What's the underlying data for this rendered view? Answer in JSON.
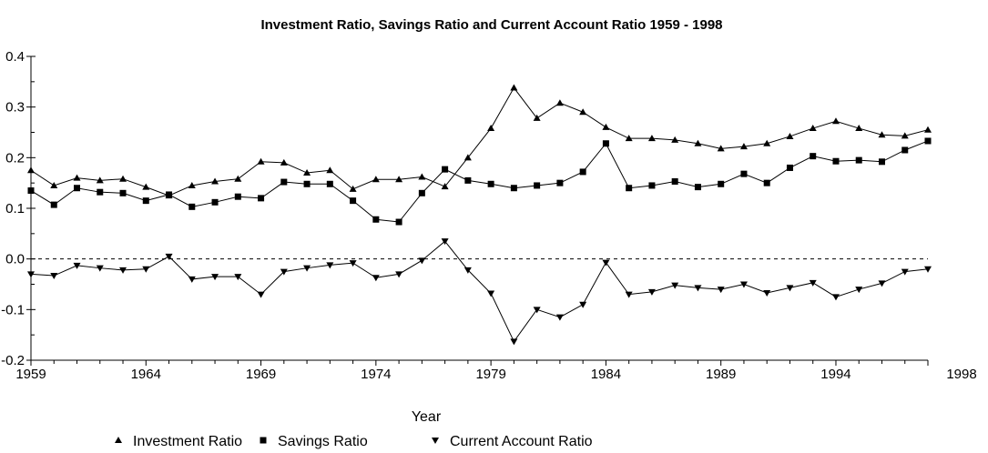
{
  "chart_data": {
    "type": "line",
    "title": "Investment Ratio, Savings Ratio and Current Account Ratio 1959 - 1998",
    "xlabel": "Year",
    "ylabel": "",
    "xlim": [
      1959,
      1998
    ],
    "ylim": [
      -0.2,
      0.4
    ],
    "x_ticks": [
      1959,
      1964,
      1969,
      1974,
      1979,
      1984,
      1989,
      1994
    ],
    "x_end_label": "1998",
    "y_ticks": [
      0.4,
      0.3,
      0.2,
      0.1,
      0.0,
      -0.1,
      -0.2
    ],
    "y_tick_labels": [
      "0.4",
      "0.3",
      "0.2",
      "0.1",
      "0.0",
      "-0.1",
      "-0.2"
    ],
    "reference_line": 0.0,
    "grid": false,
    "legend_position": "bottom",
    "x": [
      1959,
      1960,
      1961,
      1962,
      1963,
      1964,
      1965,
      1966,
      1967,
      1968,
      1969,
      1970,
      1971,
      1972,
      1973,
      1974,
      1975,
      1976,
      1977,
      1978,
      1979,
      1980,
      1981,
      1982,
      1983,
      1984,
      1985,
      1986,
      1987,
      1988,
      1989,
      1990,
      1991,
      1992,
      1993,
      1994,
      1995,
      1996,
      1997,
      1998
    ],
    "series": [
      {
        "name": "Investment Ratio",
        "marker": "triangle-up",
        "values": [
          0.175,
          0.145,
          0.16,
          0.155,
          0.158,
          0.142,
          0.125,
          0.145,
          0.153,
          0.158,
          0.192,
          0.19,
          0.17,
          0.175,
          0.138,
          0.157,
          0.157,
          0.162,
          0.143,
          0.2,
          0.258,
          0.338,
          0.278,
          0.308,
          0.29,
          0.26,
          0.238,
          0.238,
          0.235,
          0.228,
          0.218,
          0.222,
          0.228,
          0.242,
          0.258,
          0.272,
          0.258,
          0.245,
          0.243,
          0.255
        ]
      },
      {
        "name": "Savings Ratio",
        "marker": "square",
        "values": [
          0.135,
          0.107,
          0.14,
          0.132,
          0.13,
          0.115,
          0.127,
          0.103,
          0.112,
          0.123,
          0.12,
          0.152,
          0.148,
          0.148,
          0.115,
          0.078,
          0.073,
          0.13,
          0.177,
          0.155,
          0.148,
          0.14,
          0.145,
          0.15,
          0.172,
          0.228,
          0.14,
          0.145,
          0.153,
          0.142,
          0.148,
          0.168,
          0.15,
          0.18,
          0.203,
          0.193,
          0.195,
          0.192,
          0.215,
          0.233
        ]
      },
      {
        "name": "Current Account Ratio",
        "marker": "triangle-down",
        "values": [
          -0.03,
          -0.033,
          -0.013,
          -0.018,
          -0.022,
          -0.02,
          0.005,
          -0.04,
          -0.035,
          -0.035,
          -0.07,
          -0.025,
          -0.018,
          -0.012,
          -0.008,
          -0.037,
          -0.03,
          -0.003,
          0.035,
          -0.022,
          -0.068,
          -0.163,
          -0.1,
          -0.115,
          -0.09,
          -0.007,
          -0.07,
          -0.065,
          -0.052,
          -0.057,
          -0.06,
          -0.05,
          -0.067,
          -0.057,
          -0.047,
          -0.075,
          -0.06,
          -0.048,
          -0.025,
          -0.02
        ]
      }
    ]
  }
}
